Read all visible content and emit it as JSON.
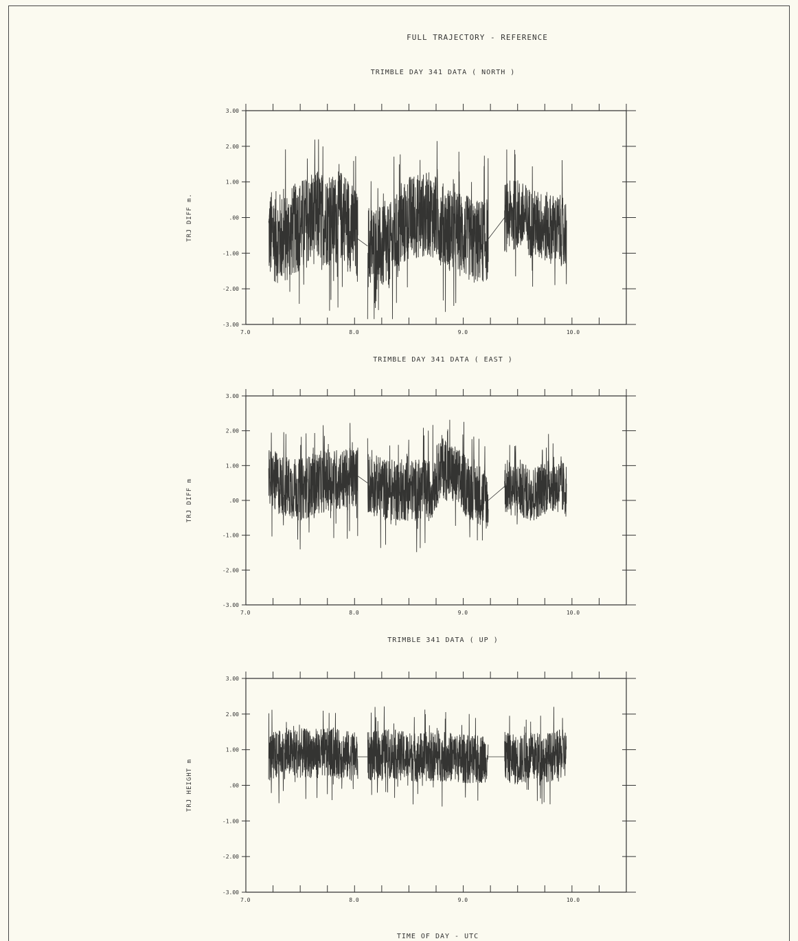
{
  "page_title": "FULL TRAJECTORY - REFERENCE",
  "x_axis_label": "TIME OF DAY - UTC",
  "chart_data": [
    {
      "type": "line",
      "title": "TRIMBLE DAY 341 DATA ( NORTH )",
      "xlabel": "",
      "ylabel": "TRJ DIFF m.",
      "xlim": [
        7.0,
        10.5
      ],
      "ylim": [
        -3.0,
        3.0
      ],
      "x_ticks": [
        "7.0",
        "8.0",
        "9.0",
        "10.0"
      ],
      "y_ticks": [
        "3.00",
        "2.00",
        "1.00",
        ".00",
        "-1.00",
        "-2.00",
        "-3.00"
      ],
      "segments": [
        {
          "x": [
            7.21,
            7.35,
            7.5,
            7.65,
            7.8,
            7.9,
            8.03
          ],
          "center": [
            -0.5,
            -0.6,
            -0.2,
            0.0,
            -0.1,
            0.1,
            -0.6
          ],
          "spread": 1.3
        },
        {
          "x": [
            8.12,
            8.3,
            8.5,
            8.7,
            8.85,
            9.0,
            9.1,
            9.23
          ],
          "center": [
            -0.8,
            -0.9,
            0.0,
            0.1,
            -0.3,
            -0.5,
            -0.7,
            -0.6
          ],
          "spread": 1.2
        },
        {
          "x": [
            9.38,
            9.5,
            9.65,
            9.8,
            9.95
          ],
          "center": [
            0.0,
            0.1,
            -0.2,
            -0.3,
            -0.4
          ],
          "spread": 1.0
        }
      ]
    },
    {
      "type": "line",
      "title": "TRIMBLE DAY 341 DATA ( EAST )",
      "xlabel": "",
      "ylabel": "TRJ DIFF m",
      "xlim": [
        7.0,
        10.5
      ],
      "ylim": [
        -3.0,
        3.0
      ],
      "x_ticks": [
        "7.0",
        "8.0",
        "9.0",
        "10.0"
      ],
      "y_ticks": [
        "3.00",
        "2.00",
        "1.00",
        ".00",
        "-1.00",
        "-2.00",
        "-3.00"
      ],
      "segments": [
        {
          "x": [
            7.21,
            7.35,
            7.5,
            7.65,
            7.8,
            7.95,
            8.03
          ],
          "center": [
            0.6,
            0.4,
            0.3,
            0.5,
            0.6,
            0.6,
            0.7
          ],
          "spread": 0.9
        },
        {
          "x": [
            8.12,
            8.3,
            8.5,
            8.7,
            8.8,
            9.0,
            9.1,
            9.23
          ],
          "center": [
            0.5,
            0.3,
            0.3,
            0.3,
            1.0,
            0.5,
            0.3,
            0.0
          ],
          "spread": 0.9
        },
        {
          "x": [
            9.38,
            9.5,
            9.65,
            9.8,
            9.95
          ],
          "center": [
            0.4,
            0.3,
            0.2,
            0.5,
            0.3
          ],
          "spread": 0.8
        }
      ]
    },
    {
      "type": "line",
      "title": "TRIMBLE 341 DATA ( UP )",
      "xlabel": "TIME OF DAY - UTC",
      "ylabel": "TRJ HEIGHT m",
      "xlim": [
        7.0,
        10.5
      ],
      "ylim": [
        -3.0,
        3.0
      ],
      "x_ticks": [
        "7.0",
        "8.0",
        "9.0",
        "10.0"
      ],
      "y_ticks": [
        "3.00",
        "2.00",
        "1.00",
        ".00",
        "-1.00",
        "-2.00",
        "-3.00"
      ],
      "segments": [
        {
          "x": [
            7.21,
            7.4,
            7.6,
            7.8,
            8.03
          ],
          "center": [
            0.8,
            0.9,
            0.9,
            0.9,
            0.8
          ],
          "spread": 0.7
        },
        {
          "x": [
            8.12,
            8.3,
            8.5,
            8.7,
            8.9,
            9.1,
            9.23
          ],
          "center": [
            0.8,
            0.9,
            0.8,
            0.8,
            0.8,
            0.7,
            0.8
          ],
          "spread": 0.7
        },
        {
          "x": [
            9.38,
            9.5,
            9.65,
            9.8,
            9.95
          ],
          "center": [
            0.8,
            0.7,
            0.8,
            0.8,
            0.9
          ],
          "spread": 0.7
        }
      ]
    }
  ]
}
